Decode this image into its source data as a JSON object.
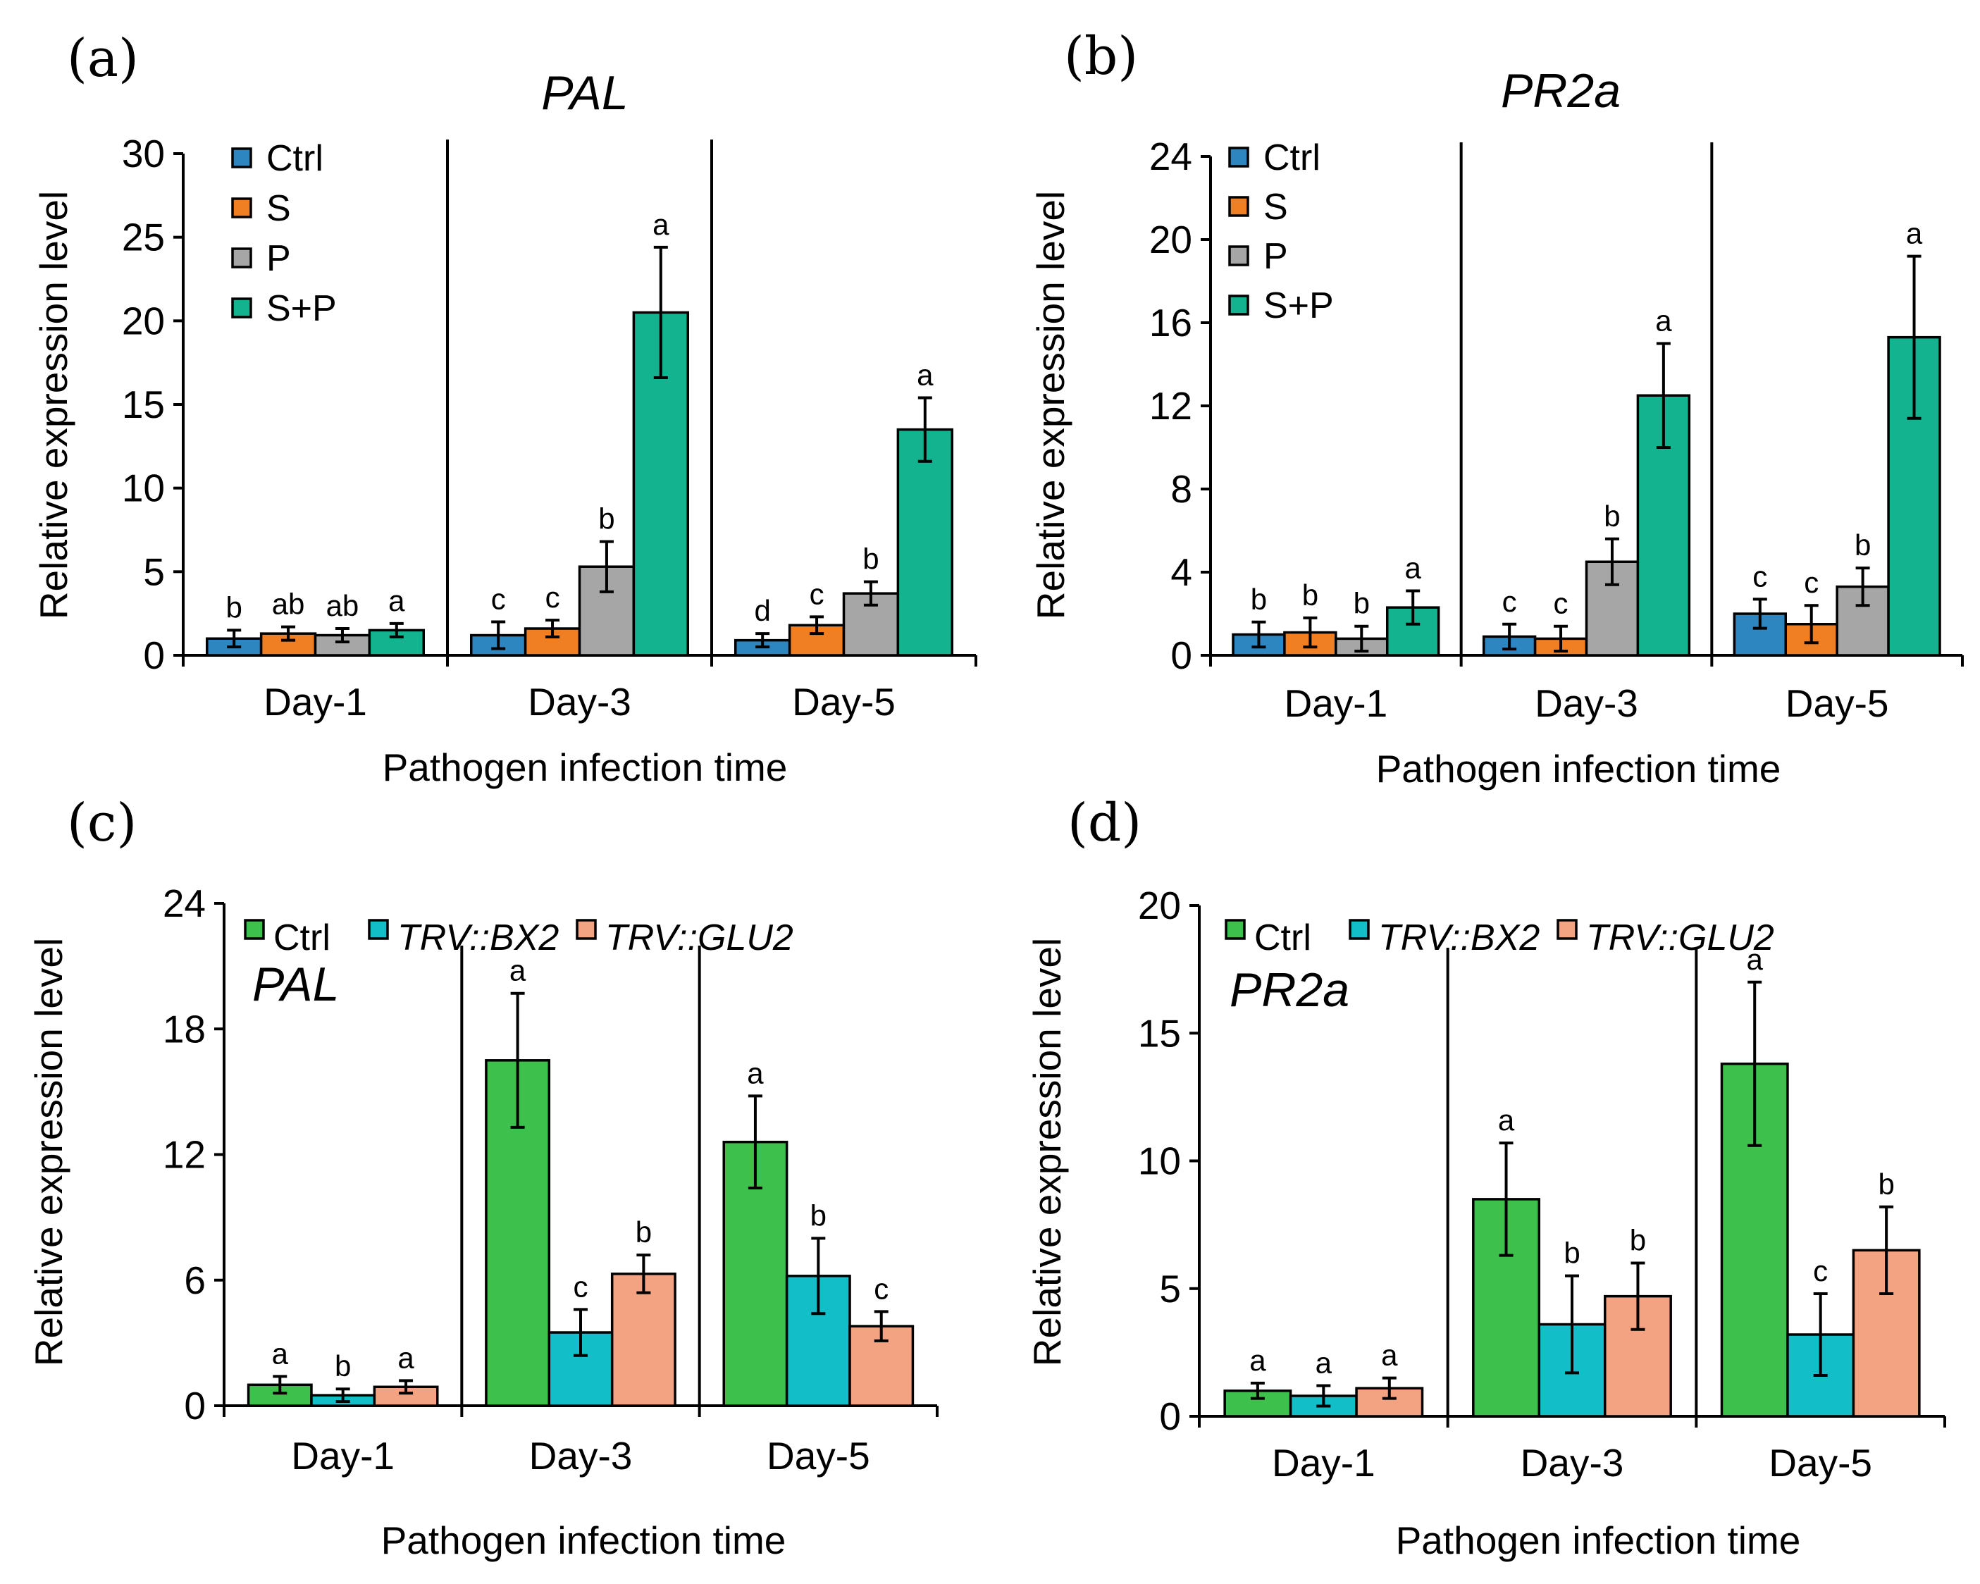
{
  "chart_data": [
    {
      "panel": "(a)",
      "type": "bar",
      "title": "PAL",
      "inner_title": "",
      "xlabel": "Pathogen infection time",
      "ylabel": "Relative expression level",
      "ylim": [
        0,
        30
      ],
      "yticks": [
        "0",
        "5",
        "10",
        "15",
        "20",
        "25",
        "30"
      ],
      "legend_layout": "vertical",
      "categories": [
        "Day-1",
        "Day-3",
        "Day-5"
      ],
      "series": [
        {
          "name": "Ctrl",
          "color": "#2e86c1",
          "italic": false,
          "values": [
            1.0,
            1.2,
            0.9
          ],
          "errors": [
            0.5,
            0.8,
            0.4
          ],
          "sig": [
            "b",
            "c",
            "d"
          ]
        },
        {
          "name": "S",
          "color": "#f07f24",
          "italic": false,
          "values": [
            1.3,
            1.6,
            1.8
          ],
          "errors": [
            0.4,
            0.5,
            0.5
          ],
          "sig": [
            "ab",
            "c",
            "c"
          ]
        },
        {
          "name": "P",
          "color": "#a6a6a6",
          "italic": false,
          "values": [
            1.2,
            5.3,
            3.7
          ],
          "errors": [
            0.4,
            1.5,
            0.7
          ],
          "sig": [
            "ab",
            "b",
            "b"
          ]
        },
        {
          "name": "S+P",
          "color": "#13b38f",
          "italic": false,
          "values": [
            1.5,
            20.5,
            13.5
          ],
          "errors": [
            0.4,
            3.9,
            1.9
          ],
          "sig": [
            "a",
            "a",
            "a"
          ]
        }
      ]
    },
    {
      "panel": "(b)",
      "type": "bar",
      "title": "PR2a",
      "inner_title": "",
      "xlabel": "Pathogen infection time",
      "ylabel": "Relative expression level",
      "ylim": [
        0,
        24
      ],
      "yticks": [
        "0",
        "4",
        "8",
        "12",
        "16",
        "20",
        "24"
      ],
      "legend_layout": "vertical",
      "categories": [
        "Day-1",
        "Day-3",
        "Day-5"
      ],
      "series": [
        {
          "name": "Ctrl",
          "color": "#2e86c1",
          "italic": false,
          "values": [
            1.0,
            0.9,
            2.0
          ],
          "errors": [
            0.6,
            0.6,
            0.7
          ],
          "sig": [
            "b",
            "c",
            "c"
          ]
        },
        {
          "name": "S",
          "color": "#f07f24",
          "italic": false,
          "values": [
            1.1,
            0.8,
            1.5
          ],
          "errors": [
            0.7,
            0.6,
            0.9
          ],
          "sig": [
            "b",
            "c",
            "c"
          ]
        },
        {
          "name": "P",
          "color": "#a6a6a6",
          "italic": false,
          "values": [
            0.8,
            4.5,
            3.3
          ],
          "errors": [
            0.6,
            1.1,
            0.9
          ],
          "sig": [
            "b",
            "b",
            "b"
          ]
        },
        {
          "name": "S+P",
          "color": "#13b38f",
          "italic": false,
          "values": [
            2.3,
            12.5,
            15.3
          ],
          "errors": [
            0.8,
            2.5,
            3.9
          ],
          "sig": [
            "a",
            "a",
            "a"
          ]
        }
      ]
    },
    {
      "panel": "(c)",
      "type": "bar",
      "title": "",
      "inner_title": "PAL",
      "xlabel": "Pathogen infection time",
      "ylabel": "Relative expression level",
      "ylim": [
        0,
        24
      ],
      "yticks": [
        "0",
        "6",
        "12",
        "18",
        "24"
      ],
      "legend_layout": "horizontal",
      "categories": [
        "Day-1",
        "Day-3",
        "Day-5"
      ],
      "series": [
        {
          "name": "Ctrl",
          "color": "#3ec04d",
          "italic": false,
          "values": [
            1.0,
            16.5,
            12.6
          ],
          "errors": [
            0.4,
            3.2,
            2.2
          ],
          "sig": [
            "a",
            "a",
            "a"
          ]
        },
        {
          "name": "TRV::BX2",
          "color": "#12bfc9",
          "italic": true,
          "values": [
            0.5,
            3.5,
            6.2
          ],
          "errors": [
            0.3,
            1.1,
            1.8
          ],
          "sig": [
            "b",
            "c",
            "b"
          ]
        },
        {
          "name": "TRV::GLU2",
          "color": "#f4a382",
          "italic": true,
          "values": [
            0.9,
            6.3,
            3.8
          ],
          "errors": [
            0.3,
            0.9,
            0.7
          ],
          "sig": [
            "a",
            "b",
            "c"
          ]
        }
      ]
    },
    {
      "panel": "(d)",
      "type": "bar",
      "title": "",
      "inner_title": "PR2a",
      "xlabel": "Pathogen infection time",
      "ylabel": "Relative expression level",
      "ylim": [
        0,
        20
      ],
      "yticks": [
        "0",
        "5",
        "10",
        "15",
        "20"
      ],
      "legend_layout": "horizontal",
      "categories": [
        "Day-1",
        "Day-3",
        "Day-5"
      ],
      "series": [
        {
          "name": "Ctrl",
          "color": "#3ec04d",
          "italic": false,
          "values": [
            1.0,
            8.5,
            13.8
          ],
          "errors": [
            0.3,
            2.2,
            3.2
          ],
          "sig": [
            "a",
            "a",
            "a"
          ]
        },
        {
          "name": "TRV::BX2",
          "color": "#12bfc9",
          "italic": true,
          "values": [
            0.8,
            3.6,
            3.2
          ],
          "errors": [
            0.4,
            1.9,
            1.6
          ],
          "sig": [
            "a",
            "b",
            "c"
          ]
        },
        {
          "name": "TRV::GLU2",
          "color": "#f4a382",
          "italic": true,
          "values": [
            1.1,
            4.7,
            6.5
          ],
          "errors": [
            0.4,
            1.3,
            1.7
          ],
          "sig": [
            "a",
            "b",
            "b"
          ]
        }
      ]
    }
  ]
}
